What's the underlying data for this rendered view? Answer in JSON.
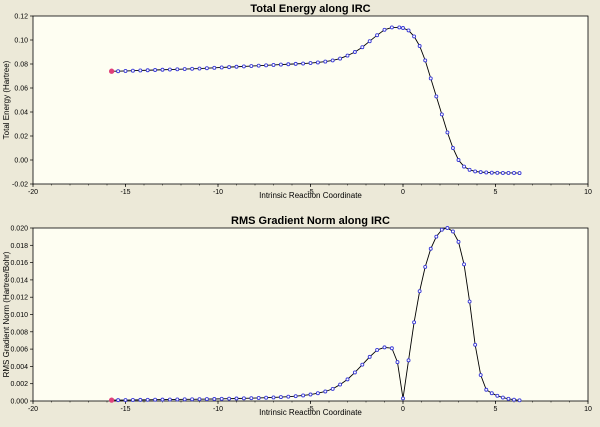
{
  "chart_data": [
    {
      "type": "line",
      "title": "Total Energy along IRC",
      "xlabel": "Intrinsic Reaction Coordinate",
      "ylabel": "Total Energy (Hartree)",
      "xlim": [
        -20,
        10
      ],
      "ylim": [
        -0.02,
        0.12
      ],
      "xticks": [
        -20,
        -15,
        -10,
        -5,
        0,
        5,
        10
      ],
      "xtick_labels": [
        "-20",
        "-15",
        "-10",
        "-5",
        "0",
        "5",
        "10"
      ],
      "yticks": [
        -0.02,
        0,
        0.02,
        0.04,
        0.06,
        0.08,
        0.1,
        0.12
      ],
      "ytick_labels": [
        "-0.02",
        "0.00",
        "0.02",
        "0.04",
        "0.06",
        "0.08",
        "0.10",
        "0.12"
      ],
      "grid": false,
      "point_color": "#3a3ad6",
      "highlight_color": "#e0407a",
      "highlight_index": 0,
      "series": [
        {
          "x": [
            -15.75,
            -15.4,
            -15.0,
            -14.6,
            -14.2,
            -13.8,
            -13.4,
            -13.0,
            -12.6,
            -12.2,
            -11.8,
            -11.4,
            -11.0,
            -10.6,
            -10.2,
            -9.8,
            -9.4,
            -9.0,
            -8.6,
            -8.2,
            -7.8,
            -7.4,
            -7.0,
            -6.6,
            -6.2,
            -5.8,
            -5.4,
            -5.0,
            -4.6,
            -4.2,
            -3.8,
            -3.4,
            -3.0,
            -2.6,
            -2.2,
            -1.8,
            -1.4,
            -1.0,
            -0.6,
            -0.2,
            0.0,
            0.3,
            0.6,
            0.9,
            1.2,
            1.5,
            1.8,
            2.1,
            2.4,
            2.7,
            3.0,
            3.3,
            3.6,
            3.9,
            4.2,
            4.5,
            4.8,
            5.1,
            5.4,
            5.7,
            6.0,
            6.3
          ],
          "y": [
            0.074,
            0.074,
            0.0742,
            0.0744,
            0.0746,
            0.0748,
            0.075,
            0.0752,
            0.0754,
            0.0756,
            0.0758,
            0.076,
            0.0762,
            0.0765,
            0.0768,
            0.0771,
            0.0774,
            0.0777,
            0.078,
            0.0783,
            0.0786,
            0.0789,
            0.0792,
            0.0795,
            0.0798,
            0.0801,
            0.0804,
            0.0808,
            0.0813,
            0.082,
            0.083,
            0.0845,
            0.087,
            0.09,
            0.094,
            0.099,
            0.104,
            0.1085,
            0.1105,
            0.1105,
            0.11,
            0.108,
            0.103,
            0.095,
            0.083,
            0.068,
            0.053,
            0.038,
            0.023,
            0.01,
            0.0,
            -0.0055,
            -0.0082,
            -0.0095,
            -0.0101,
            -0.0104,
            -0.0106,
            -0.0107,
            -0.0108,
            -0.0108,
            -0.0108,
            -0.0109
          ]
        }
      ]
    },
    {
      "type": "line",
      "title": "RMS Gradient Norm along IRC",
      "xlabel": "Intrinsic Reaction Coordinate",
      "ylabel": "RMS Gradient Norm (Hartree/Bohr)",
      "xlim": [
        -20,
        10
      ],
      "ylim": [
        0,
        0.02
      ],
      "xticks": [
        -20,
        -15,
        -10,
        -5,
        0,
        5,
        10
      ],
      "xtick_labels": [
        "-20",
        "-15",
        "-10",
        "-5",
        "0",
        "5",
        "10"
      ],
      "yticks": [
        0,
        0.002,
        0.004,
        0.006,
        0.008,
        0.01,
        0.012,
        0.014,
        0.016,
        0.018,
        0.02
      ],
      "ytick_labels": [
        "0.000",
        "0.002",
        "0.004",
        "0.006",
        "0.008",
        "0.010",
        "0.012",
        "0.014",
        "0.016",
        "0.018",
        "0.020"
      ],
      "grid": false,
      "point_color": "#3a3ad6",
      "highlight_color": "#e0407a",
      "highlight_index": 0,
      "series": [
        {
          "x": [
            -15.75,
            -15.4,
            -15.0,
            -14.6,
            -14.2,
            -13.8,
            -13.4,
            -13.0,
            -12.6,
            -12.2,
            -11.8,
            -11.4,
            -11.0,
            -10.6,
            -10.2,
            -9.8,
            -9.4,
            -9.0,
            -8.6,
            -8.2,
            -7.8,
            -7.4,
            -7.0,
            -6.6,
            -6.2,
            -5.8,
            -5.4,
            -5.0,
            -4.6,
            -4.2,
            -3.8,
            -3.4,
            -3.0,
            -2.6,
            -2.2,
            -1.8,
            -1.4,
            -1.0,
            -0.6,
            -0.3,
            0.0,
            0.3,
            0.6,
            0.9,
            1.2,
            1.5,
            1.8,
            2.1,
            2.4,
            2.7,
            3.0,
            3.3,
            3.6,
            3.9,
            4.2,
            4.5,
            4.8,
            5.1,
            5.4,
            5.7,
            6.0,
            6.3
          ],
          "y": [
            0.0001,
            0.0001,
            0.00011,
            0.00012,
            0.00013,
            0.00014,
            0.00015,
            0.00016,
            0.00017,
            0.00018,
            0.00019,
            0.0002,
            0.00021,
            0.00022,
            0.00023,
            0.00025,
            0.00027,
            0.00029,
            0.00031,
            0.00033,
            0.00035,
            0.00038,
            0.00041,
            0.00045,
            0.0005,
            0.00056,
            0.00064,
            0.00075,
            0.0009,
            0.0011,
            0.0014,
            0.0019,
            0.0025,
            0.0033,
            0.0042,
            0.0051,
            0.0059,
            0.0062,
            0.0061,
            0.0045,
            0.0003,
            0.0047,
            0.0091,
            0.0127,
            0.0155,
            0.0176,
            0.019,
            0.0198,
            0.02,
            0.0196,
            0.0184,
            0.0158,
            0.0115,
            0.0065,
            0.003,
            0.0013,
            0.0009,
            0.0006,
            0.0004,
            0.00025,
            0.00015,
            8e-05
          ]
        }
      ]
    }
  ]
}
